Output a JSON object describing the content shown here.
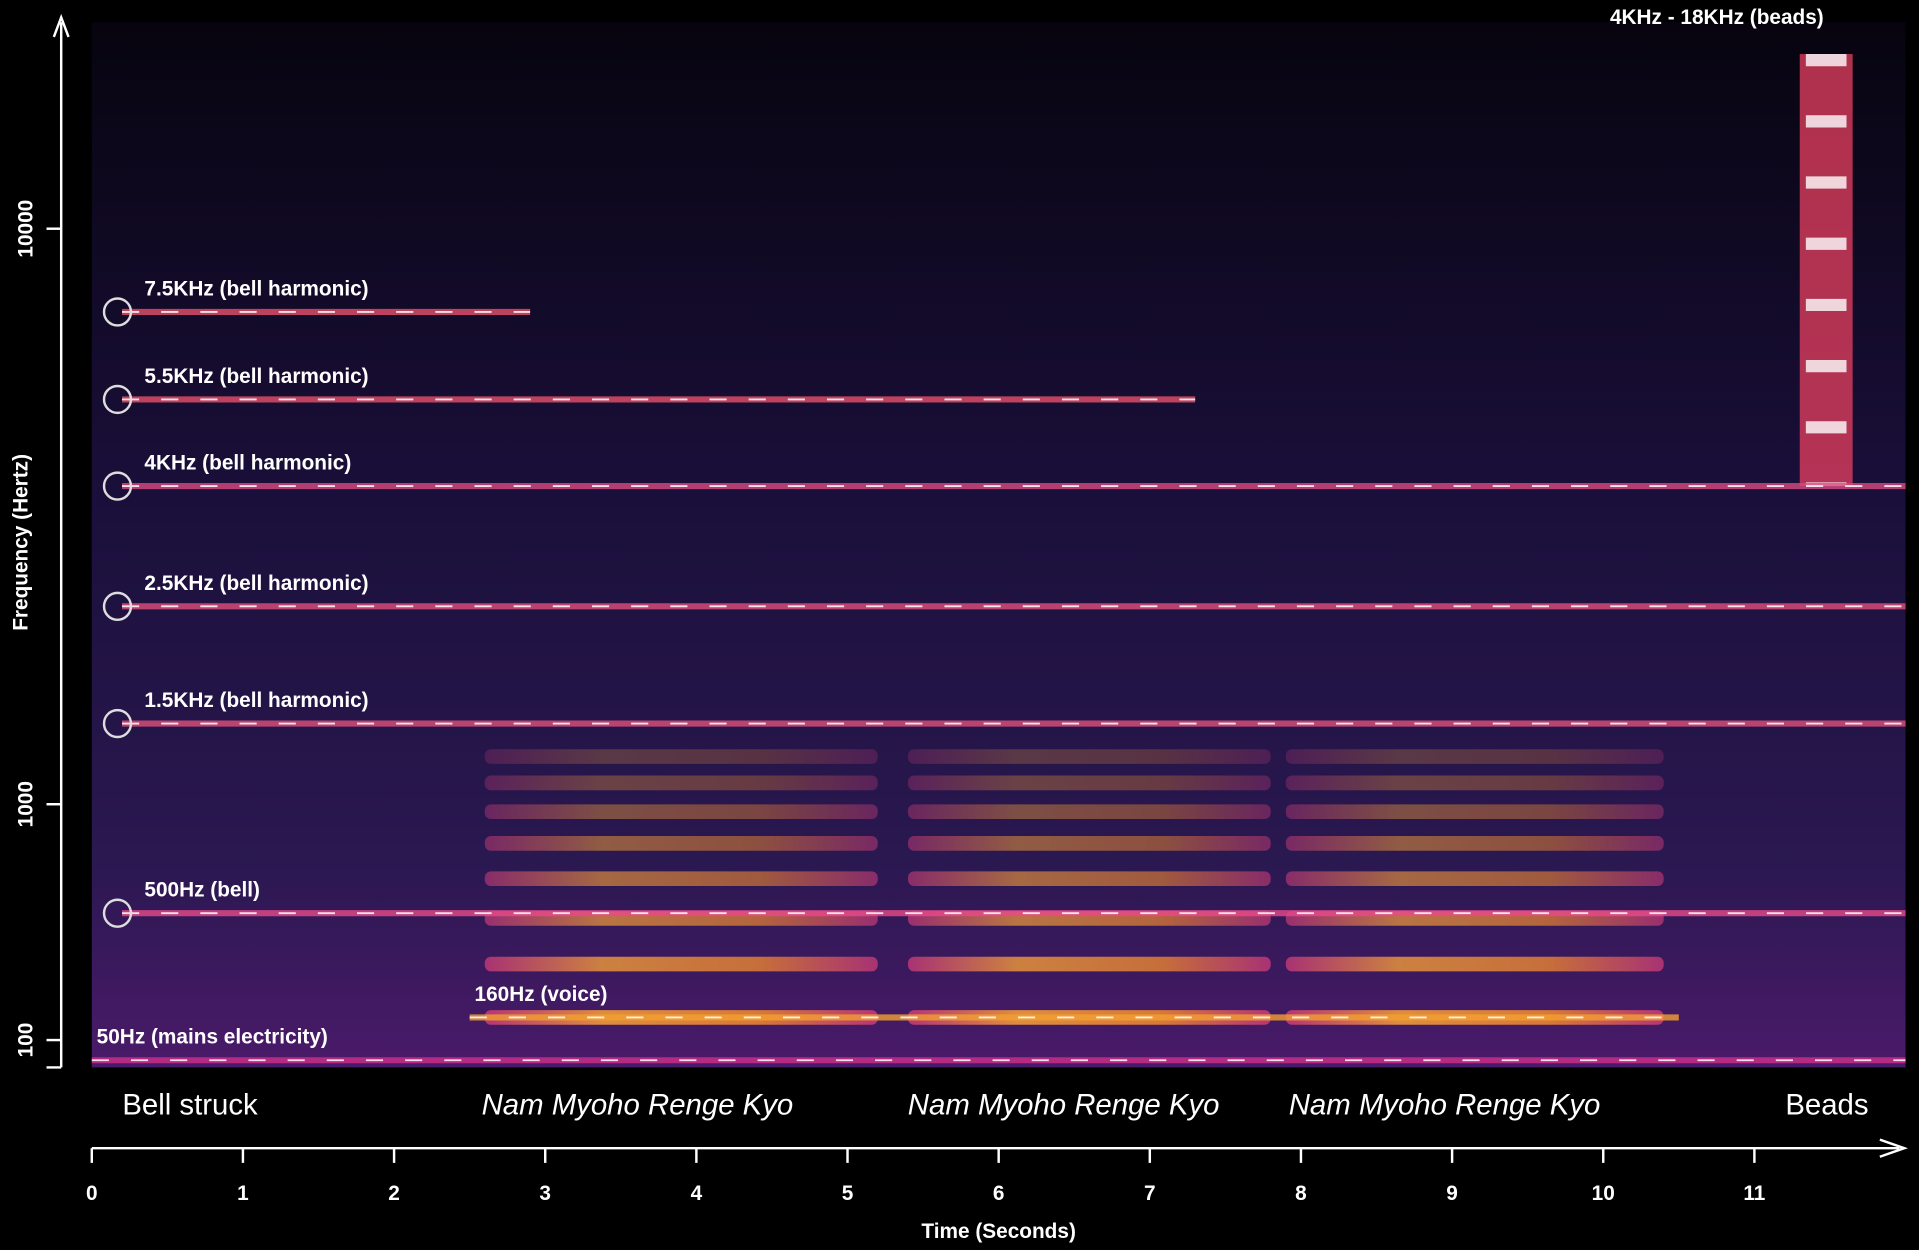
{
  "chart_data": {
    "type": "spectrogram",
    "xlabel": "Time (Seconds)",
    "ylabel": "Frequency (Hertz)",
    "xlim": [
      0,
      12
    ],
    "xticks": [
      0,
      1,
      2,
      3,
      4,
      5,
      6,
      7,
      8,
      9,
      10,
      11
    ],
    "yscale": "mel",
    "ylim": [
      33,
      20000
    ],
    "yticks": [
      100,
      1000,
      10000
    ],
    "lines": [
      {
        "label": "7.5KHz (bell harmonic)",
        "frequency": 7500,
        "start": 0.2,
        "end": 2.9,
        "marker": true,
        "color": "#e8506a"
      },
      {
        "label": "5.5KHz (bell harmonic)",
        "frequency": 5500,
        "start": 0.2,
        "end": 7.3,
        "marker": true,
        "color": "#e8506a"
      },
      {
        "label": "4KHz (bell harmonic)",
        "frequency": 4000,
        "start": 0.2,
        "end": 12,
        "marker": true,
        "color": "#d84a80"
      },
      {
        "label": "2.5KHz (bell harmonic)",
        "frequency": 2500,
        "start": 0.2,
        "end": 12,
        "marker": true,
        "color": "#e0507a"
      },
      {
        "label": "1.5KHz (bell harmonic)",
        "frequency": 1500,
        "start": 0.2,
        "end": 12,
        "marker": true,
        "color": "#e0507a"
      },
      {
        "label": "500Hz (bell)",
        "frequency": 500,
        "start": 0.2,
        "end": 12,
        "marker": true,
        "color": "#e84a8a"
      },
      {
        "label": "160Hz (voice)",
        "frequency": 160,
        "start": 2.5,
        "end": 10.5,
        "marker": false,
        "color": "#f4a030"
      },
      {
        "label": "50Hz (mains electricity)",
        "frequency": 50,
        "start": 0,
        "end": 12,
        "marker": false,
        "color": "#d0308a"
      }
    ],
    "band": {
      "label": "4KHz - 18KHz (beads)",
      "from": 4000,
      "to": 18000,
      "start": 11.3,
      "end": 11.65,
      "color": "#e84060"
    },
    "voice_segments": [
      [
        2.6,
        5.2
      ],
      [
        5.4,
        7.8
      ],
      [
        7.9,
        10.4
      ]
    ],
    "sections": [
      {
        "label": "Bell struck",
        "x": 0.65,
        "italic": false
      },
      {
        "label": "Nam Myoho Renge Kyo",
        "x": 3.61,
        "italic": true
      },
      {
        "label": "Nam Myoho Renge Kyo",
        "x": 6.43,
        "italic": true
      },
      {
        "label": "Nam Myoho Renge Kyo",
        "x": 8.95,
        "italic": true
      },
      {
        "label": "Beads",
        "x": 11.48,
        "italic": false
      }
    ]
  }
}
